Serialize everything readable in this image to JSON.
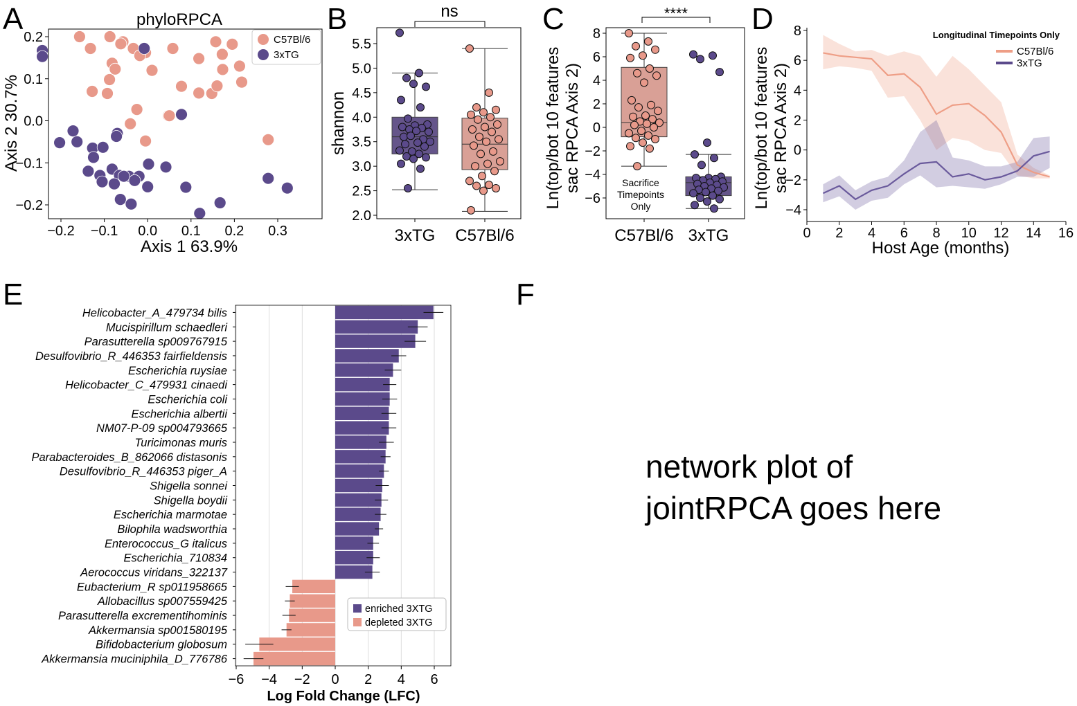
{
  "colors": {
    "c57": "#E8998A",
    "x3tg": "#5B4A8B",
    "c57_box": "#D9A096",
    "x3tg_box": "#65558A",
    "x3tg_line": "#6A5A9C",
    "c57_line": "#EE9E86"
  },
  "panels": {
    "A": {
      "letter": "A",
      "title": "phyloRPCA",
      "xlabel": "Axis 1  63.9%",
      "ylabel": "Axis 2  30.7%",
      "legend": [
        "C57Bl/6",
        "3xTG"
      ]
    },
    "B": {
      "letter": "B",
      "ylabel": "shannon",
      "categories": [
        "3xTG",
        "C57Bl/6"
      ],
      "sig": "ns"
    },
    "C": {
      "letter": "C",
      "ylabel_line1": "Ln(top/bot 10 features",
      "ylabel_line2": "sac RPCA  Axis 2)",
      "categories": [
        "C57Bl/6",
        "3xTG"
      ],
      "sig": "****",
      "note": [
        "Sacrifice",
        "Timepoints",
        "Only"
      ]
    },
    "D": {
      "letter": "D",
      "ylabel_line1": "Ln(top/bot 10 features",
      "ylabel_line2": "sac RPCA  Axis 2)",
      "xlabel": "Host Age (months)",
      "note": "Longitudinal Timepoints Only",
      "legend": [
        "C57Bl/6",
        "3xTG"
      ]
    },
    "E": {
      "letter": "E",
      "xlabel": "Log Fold Change (LFC)",
      "legend": [
        "enriched 3XTG",
        "depleted 3XTG"
      ]
    },
    "F": {
      "letter": "F",
      "placeholder_line1": "network plot of",
      "placeholder_line2": "jointRPCA goes here"
    }
  },
  "chart_data": [
    {
      "panel": "A",
      "type": "scatter",
      "title": "phyloRPCA",
      "xlabel": "Axis 1  63.9%",
      "ylabel": "Axis 2  30.7%",
      "xlim": [
        -0.25,
        0.4
      ],
      "ylim": [
        -0.23,
        0.22
      ],
      "xticks": [
        -0.2,
        -0.1,
        0.0,
        0.1,
        0.2,
        0.3
      ],
      "xtick_labels": [
        "−0.2",
        "−0.1",
        "0.0",
        "0.1",
        "0.2",
        "0.3"
      ],
      "yticks": [
        -0.2,
        -0.1,
        0.0,
        0.1,
        0.2
      ],
      "ytick_labels": [
        "−0.2",
        "−0.1",
        "0.0",
        "0.1",
        "0.2"
      ],
      "legend_position": "top-right",
      "series": [
        {
          "name": "C57Bl/6",
          "points": [
            [
              -0.157,
              0.2
            ],
            [
              -0.132,
              0.172
            ],
            [
              -0.087,
              0.2
            ],
            [
              -0.057,
              0.188
            ],
            [
              -0.062,
              0.183
            ],
            [
              -0.033,
              0.172
            ],
            [
              -0.005,
              0.162
            ],
            [
              0.058,
              0.172
            ],
            [
              0.157,
              0.188
            ],
            [
              0.195,
              0.182
            ],
            [
              -0.082,
              0.137
            ],
            [
              -0.075,
              0.123
            ],
            [
              -0.018,
              0.155
            ],
            [
              0.01,
              0.12
            ],
            [
              0.118,
              0.148
            ],
            [
              0.172,
              0.158
            ],
            [
              0.212,
              0.13
            ],
            [
              0.173,
              0.122
            ],
            [
              -0.088,
              0.098
            ],
            [
              -0.128,
              0.07
            ],
            [
              -0.093,
              0.065
            ],
            [
              0.078,
              0.082
            ],
            [
              0.118,
              0.066
            ],
            [
              0.148,
              0.065
            ],
            [
              0.16,
              0.083
            ],
            [
              0.217,
              0.092
            ],
            [
              -0.025,
              0.027
            ],
            [
              0.048,
              0.012
            ],
            [
              0.05,
              0.012
            ],
            [
              -0.04,
              -0.007
            ],
            [
              -0.005,
              -0.048
            ],
            [
              0.278,
              -0.045
            ]
          ]
        },
        {
          "name": "3xTG",
          "points": [
            [
              -0.243,
              0.167
            ],
            [
              -0.243,
              0.153
            ],
            [
              -0.008,
              0.172
            ],
            [
              0.078,
              0.015
            ],
            [
              -0.203,
              -0.052
            ],
            [
              -0.172,
              -0.024
            ],
            [
              -0.163,
              -0.05
            ],
            [
              -0.127,
              -0.065
            ],
            [
              -0.103,
              -0.063
            ],
            [
              -0.125,
              -0.087
            ],
            [
              -0.07,
              -0.03
            ],
            [
              -0.072,
              -0.037
            ],
            [
              -0.137,
              -0.12
            ],
            [
              -0.11,
              -0.13
            ],
            [
              -0.082,
              -0.115
            ],
            [
              -0.065,
              -0.13
            ],
            [
              -0.043,
              -0.132
            ],
            [
              -0.077,
              -0.15
            ],
            [
              -0.105,
              -0.145
            ],
            [
              -0.055,
              -0.132
            ],
            [
              -0.02,
              -0.132
            ],
            [
              0.002,
              -0.103
            ],
            [
              0.042,
              -0.11
            ],
            [
              -0.03,
              -0.142
            ],
            [
              0.0,
              -0.157
            ],
            [
              0.088,
              -0.158
            ],
            [
              -0.063,
              -0.187
            ],
            [
              -0.038,
              -0.198
            ],
            [
              0.12,
              -0.22
            ],
            [
              0.167,
              -0.195
            ],
            [
              0.278,
              -0.137
            ],
            [
              0.322,
              -0.16
            ]
          ]
        }
      ]
    },
    {
      "panel": "B",
      "type": "box",
      "ylabel": "shannon",
      "categories": [
        "3xTG",
        "C57Bl/6"
      ],
      "ylim": [
        1.9,
        5.85
      ],
      "yticks": [
        2.0,
        2.5,
        3.0,
        3.5,
        4.0,
        4.5,
        5.0,
        5.5
      ],
      "ytick_labels": [
        "2.0",
        "2.5",
        "3.0",
        "3.5",
        "4.0",
        "4.5",
        "5.0",
        "5.5"
      ],
      "annotation": "ns",
      "boxes": [
        {
          "name": "3xTG",
          "whisker_low": 2.52,
          "q1": 3.25,
          "median": 3.6,
          "q3": 4.0,
          "whisker_high": 4.9
        },
        {
          "name": "C57Bl/6",
          "whisker_low": 2.08,
          "q1": 2.93,
          "median": 3.45,
          "q3": 3.98,
          "whisker_high": 5.4
        }
      ],
      "series": [
        {
          "name": "3xTG",
          "values": [
            5.72,
            4.9,
            4.8,
            4.62,
            4.68,
            4.35,
            4.2,
            3.97,
            3.85,
            3.83,
            3.8,
            3.78,
            3.75,
            3.7,
            3.72,
            3.6,
            3.55,
            3.62,
            3.5,
            3.48,
            3.45,
            3.4,
            3.3,
            3.32,
            3.25,
            3.2,
            3.18,
            3.15,
            3.05,
            2.95,
            2.55
          ]
        },
        {
          "name": "C57Bl/6",
          "values": [
            5.4,
            4.5,
            4.2,
            4.15,
            4.1,
            4.05,
            4.0,
            3.95,
            3.85,
            3.8,
            3.75,
            3.7,
            3.6,
            3.55,
            3.5,
            3.42,
            3.3,
            3.25,
            3.1,
            3.05,
            3.0,
            2.9,
            2.8,
            2.7,
            2.62,
            2.6,
            2.55,
            2.5,
            2.1
          ]
        }
      ]
    },
    {
      "panel": "C",
      "type": "box",
      "ylabel": "Ln(top/bot 10 features sac RPCA  Axis 2)",
      "categories": [
        "C57Bl/6",
        "3xTG"
      ],
      "ylim": [
        -7.8,
        8.8
      ],
      "yticks": [
        -6,
        -4,
        -2,
        0,
        2,
        4,
        6,
        8
      ],
      "ytick_labels": [
        "−6",
        "−4",
        "−2",
        "0",
        "2",
        "4",
        "6",
        "8"
      ],
      "annotation": "****",
      "boxes": [
        {
          "name": "C57Bl/6",
          "whisker_low": -3.3,
          "q1": -0.8,
          "median": 0.4,
          "q3": 5.1,
          "whisker_high": 8.0
        },
        {
          "name": "3xTG",
          "whisker_low": -6.9,
          "q1": -5.8,
          "median": -4.7,
          "q3": -4.2,
          "whisker_high": -2.3
        }
      ],
      "series": [
        {
          "name": "C57Bl/6",
          "values": [
            8.0,
            7.3,
            6.9,
            6.6,
            6.1,
            5.9,
            5.0,
            4.6,
            4.4,
            3.8,
            2.3,
            1.9,
            1.7,
            1.4,
            1.0,
            0.9,
            0.7,
            0.5,
            0.4,
            0.3,
            0.2,
            0.0,
            -0.3,
            -0.5,
            -0.7,
            -0.9,
            -1.0,
            -1.3,
            -1.6,
            -1.8,
            -3.3
          ]
        },
        {
          "name": "3xTG",
          "values": [
            6.2,
            6.1,
            5.8,
            4.7,
            -1.3,
            -2.3,
            -2.6,
            -3.2,
            -4.2,
            -4.3,
            -4.3,
            -4.4,
            -4.5,
            -4.6,
            -4.7,
            -4.8,
            -4.9,
            -5.0,
            -5.1,
            -5.2,
            -5.3,
            -5.4,
            -5.5,
            -5.6,
            -5.8,
            -6.0,
            -6.1,
            -6.3,
            -6.6,
            -6.9
          ]
        }
      ]
    },
    {
      "panel": "D",
      "type": "line",
      "xlabel": "Host Age (months)",
      "ylabel": "Ln(top/bot 10 features sac RPCA  Axis 2)",
      "xlim": [
        0,
        16
      ],
      "ylim": [
        -4.5,
        8.3
      ],
      "xticks": [
        0,
        2,
        4,
        6,
        8,
        10,
        12,
        14,
        16
      ],
      "xtick_labels": [
        "0",
        "2",
        "4",
        "6",
        "8",
        "10",
        "12",
        "14",
        "16"
      ],
      "yticks": [
        -4,
        -2,
        0,
        2,
        4,
        6,
        8
      ],
      "ytick_labels": [
        "−4",
        "−2",
        "0",
        "2",
        "4",
        "6",
        "8"
      ],
      "legend_position": "top-right",
      "series": [
        {
          "name": "C57Bl/6",
          "x": [
            1,
            2,
            3,
            4,
            5,
            6,
            7,
            8,
            9,
            10,
            11,
            12,
            13,
            14,
            15
          ],
          "y": [
            6.5,
            6.3,
            6.2,
            6.1,
            5.0,
            5.1,
            4.2,
            2.4,
            3.0,
            3.1,
            2.3,
            1.2,
            -1.0,
            -1.5,
            -1.8
          ],
          "lower": [
            5.4,
            5.6,
            5.5,
            5.3,
            3.5,
            3.6,
            2.0,
            0.0,
            0.8,
            0.6,
            0.0,
            -0.2,
            -1.7,
            -1.9,
            -1.9
          ],
          "upper": [
            7.7,
            7.1,
            6.6,
            6.7,
            6.3,
            6.6,
            6.3,
            4.9,
            6.3,
            5.4,
            4.3,
            3.2,
            -0.3,
            -1.2,
            -1.7
          ]
        },
        {
          "name": "3xTG",
          "x": [
            1,
            2,
            3,
            4,
            5,
            6,
            7,
            8,
            9,
            10,
            11,
            12,
            13,
            14,
            15
          ],
          "y": [
            -2.9,
            -2.4,
            -3.3,
            -2.7,
            -2.4,
            -1.6,
            -0.9,
            -0.8,
            -1.8,
            -1.6,
            -2.0,
            -1.8,
            -1.4,
            -0.4,
            -0.1
          ],
          "lower": [
            -3.5,
            -3.1,
            -4.0,
            -3.4,
            -3.2,
            -2.3,
            -1.7,
            -2.5,
            -2.4,
            -2.5,
            -2.6,
            -2.3,
            -1.8,
            -1.8,
            -1.2
          ],
          "upper": [
            -2.3,
            -1.7,
            -2.7,
            -2.1,
            -1.8,
            -0.7,
            1.2,
            2.0,
            -0.5,
            -0.7,
            -1.1,
            -1.1,
            -0.8,
            0.8,
            0.9
          ]
        }
      ]
    },
    {
      "panel": "E",
      "type": "bar",
      "orientation": "horizontal",
      "xlabel": "Log Fold Change (LFC)",
      "xlim": [
        -6,
        7
      ],
      "xticks": [
        -6,
        -4,
        -2,
        0,
        2,
        4,
        6
      ],
      "xtick_labels": [
        "−6",
        "−4",
        "−2",
        "0",
        "2",
        "4",
        "6"
      ],
      "grid": true,
      "legend_position": "bottom-center",
      "categories": [
        "Helicobacter_A_479734 bilis",
        "Mucispirillum schaedleri",
        "Parasutterella sp009767915",
        "Desulfovibrio_R_446353 fairfieldensis",
        "Escherichia ruysiae",
        "Helicobacter_C_479931 cinaedi",
        "Escherichia coli",
        "Escherichia albertii",
        "NM07-P-09 sp004793665",
        "Turicimonas muris",
        "Parabacteroides_B_862066 distasonis",
        "Desulfovibrio_R_446353 piger_A",
        "Shigella sonnei",
        "Shigella boydii",
        "Escherichia marmotae",
        "Bilophila wadsworthia",
        "Enterococcus_G italicus",
        "Escherichia_710834",
        "Aerococcus viridans_322137",
        "Eubacterium_R sp011958665",
        "Allobacillus sp007559425",
        "Parasutterella excrementihominis",
        "Akkermansia sp001580195",
        "Bifidobacterium globosum",
        "Akkermansia muciniphila_D_776786"
      ],
      "values": [
        5.95,
        5.0,
        4.85,
        3.85,
        3.5,
        3.3,
        3.3,
        3.25,
        3.25,
        3.1,
        3.05,
        2.95,
        2.85,
        2.8,
        2.75,
        2.65,
        2.3,
        2.3,
        2.25,
        -2.6,
        -2.75,
        -2.8,
        -2.95,
        -4.6,
        -4.95
      ],
      "errors": [
        0.6,
        0.6,
        0.65,
        0.45,
        0.5,
        0.4,
        0.45,
        0.45,
        0.45,
        0.45,
        0.3,
        0.3,
        0.4,
        0.4,
        0.35,
        0.25,
        0.35,
        0.4,
        0.45,
        0.4,
        0.3,
        0.4,
        0.3,
        0.85,
        0.6
      ],
      "series": [
        {
          "name": "enriched 3XTG"
        },
        {
          "name": "depleted 3XTG"
        }
      ]
    }
  ]
}
